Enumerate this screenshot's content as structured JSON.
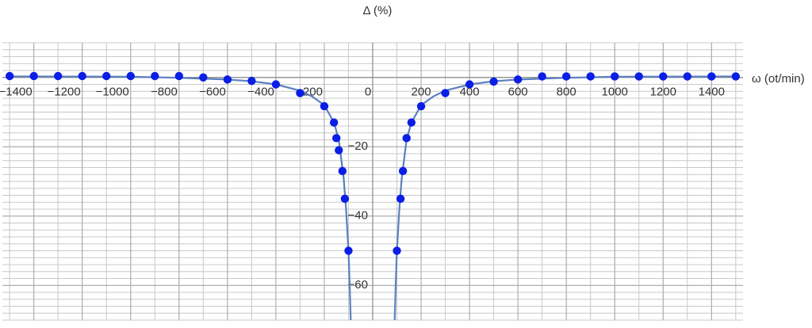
{
  "chart_data": {
    "type": "scatter",
    "y_label": "Δ (%)",
    "x_label": "ω (ot/min)",
    "xlim": [
      -1530,
      1530
    ],
    "ylim": [
      -70,
      10
    ],
    "xticks": [
      {
        "value": -1400,
        "label": "−1400"
      },
      {
        "value": -1200,
        "label": "−1200"
      },
      {
        "value": -1000,
        "label": "−1000"
      },
      {
        "value": -800,
        "label": "−800"
      },
      {
        "value": -600,
        "label": "−600"
      },
      {
        "value": -400,
        "label": "−400"
      },
      {
        "value": -200,
        "label": "−200"
      },
      0,
      200,
      400,
      600,
      800,
      1000,
      1200,
      1400
    ],
    "yticks": [
      {
        "value": -60,
        "label": "−60"
      },
      {
        "value": -40,
        "label": "−40"
      },
      {
        "value": -20,
        "label": "−20"
      }
    ],
    "grid": true,
    "series": [
      {
        "type": "line",
        "color": "#5b7fbf",
        "x": [
          -1500,
          -1000,
          -800,
          -600,
          -500,
          -400,
          -300,
          -250,
          -200,
          -160,
          -140,
          -120,
          -110,
          -100,
          -95,
          -90,
          0,
          90,
          95,
          100,
          110,
          120,
          140,
          160,
          200,
          250,
          300,
          400,
          500,
          600,
          800,
          1000,
          1500
        ],
        "values": [
          0.3,
          0.2,
          -0.1,
          -0.6,
          -1.1,
          -2,
          -3.8,
          -5.5,
          -8,
          -13,
          -18,
          -29,
          -38,
          -50,
          -60,
          -72,
          null,
          -72,
          -60,
          -50,
          -38,
          -29,
          -18,
          -13,
          -8,
          -5.5,
          -3.8,
          -2,
          -1.1,
          -0.6,
          -0.1,
          0.2,
          0.3
        ]
      },
      {
        "type": "scatter",
        "color": "#0a1ee6",
        "x": [
          -1500,
          -1400,
          -1300,
          -1200,
          -1100,
          -1000,
          -900,
          -800,
          -700,
          -600,
          -500,
          -400,
          -300,
          -200,
          -160,
          -150,
          -140,
          -125,
          -115,
          -100,
          100,
          115,
          125,
          140,
          160,
          200,
          300,
          400,
          500,
          600,
          700,
          800,
          900,
          1000,
          1100,
          1200,
          1300,
          1400,
          1500
        ],
        "values": [
          0.4,
          0.4,
          0.4,
          0.4,
          0.4,
          0.4,
          0.4,
          0.4,
          0,
          -0.6,
          -1,
          -2,
          -4.5,
          -8.3,
          -13,
          -17.5,
          -21,
          -27,
          -35,
          -50,
          -50,
          -35,
          -27,
          -17.5,
          -13,
          -8.3,
          -4.5,
          -2,
          -1.2,
          -0.6,
          0.3,
          0.3,
          0.3,
          0.3,
          0.3,
          0.3,
          0.3,
          0.3,
          0.3
        ]
      }
    ]
  }
}
